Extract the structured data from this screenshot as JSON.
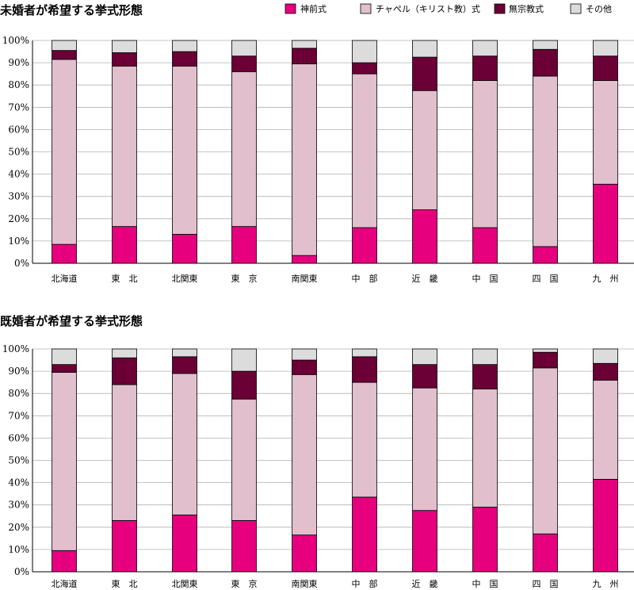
{
  "colors": {
    "shinzen": "#e6007e",
    "chapel": "#e1bfcd",
    "mushukyo": "#6a0035",
    "other": "#dcdcdc"
  },
  "legend": [
    {
      "key": "shinzen",
      "label": "神前式"
    },
    {
      "key": "chapel",
      "label": "チャペル（キリスト教）式"
    },
    {
      "key": "mushukyo",
      "label": "無宗教式"
    },
    {
      "key": "other",
      "label": "その他"
    }
  ],
  "chart_data": [
    {
      "type": "bar",
      "stacked": true,
      "title": "未婚者が希望する挙式形態",
      "categories": [
        "北海道",
        "東　北",
        "北関東",
        "東　京",
        "南関東",
        "中　部",
        "近　畿",
        "中　国",
        "四　国",
        "九　州"
      ],
      "yticks": [
        "0%",
        "10%",
        "20%",
        "30%",
        "40%",
        "50%",
        "60%",
        "70%",
        "80%",
        "90%",
        "100%"
      ],
      "ylim": [
        0,
        100
      ],
      "series": [
        {
          "name": "神前式",
          "key": "shinzen",
          "values": [
            8.5,
            16.5,
            13,
            16.5,
            3.5,
            16,
            24,
            16,
            7.5,
            35.5
          ]
        },
        {
          "name": "チャペル（キリスト教）式",
          "key": "chapel",
          "values": [
            83,
            72,
            75.5,
            69.5,
            86,
            69,
            53.5,
            66,
            76.5,
            46.5
          ]
        },
        {
          "name": "無宗教式",
          "key": "mushukyo",
          "values": [
            4,
            6,
            6.5,
            7,
            7,
            5,
            15,
            11,
            12,
            11
          ]
        },
        {
          "name": "その他",
          "key": "other",
          "values": [
            4.5,
            5.5,
            5,
            7,
            3.5,
            10,
            7.5,
            7,
            4,
            7
          ]
        }
      ]
    },
    {
      "type": "bar",
      "stacked": true,
      "title": "既婚者が希望する挙式形態",
      "categories": [
        "北海道",
        "東　北",
        "北関東",
        "東　京",
        "南関東",
        "中　部",
        "近　畿",
        "中　国",
        "四　国",
        "九　州"
      ],
      "yticks": [
        "0%",
        "10%",
        "20%",
        "30%",
        "40%",
        "50%",
        "60%",
        "70%",
        "80%",
        "90%",
        "100%"
      ],
      "ylim": [
        0,
        100
      ],
      "series": [
        {
          "name": "神前式",
          "key": "shinzen",
          "values": [
            9.5,
            23,
            25.5,
            23,
            16.5,
            33.5,
            27.5,
            29,
            17,
            41.5
          ]
        },
        {
          "name": "チャペル（キリスト教）式",
          "key": "chapel",
          "values": [
            80,
            61,
            63.5,
            54.5,
            72,
            51.5,
            55,
            53,
            74.5,
            44.5
          ]
        },
        {
          "name": "無宗教式",
          "key": "mushukyo",
          "values": [
            3.5,
            12,
            7.5,
            12.5,
            6.5,
            11.5,
            10.5,
            11,
            7,
            7.5
          ]
        },
        {
          "name": "その他",
          "key": "other",
          "values": [
            7,
            4,
            3.5,
            10,
            5,
            3.5,
            7,
            7,
            1.5,
            6.5
          ]
        }
      ]
    }
  ]
}
